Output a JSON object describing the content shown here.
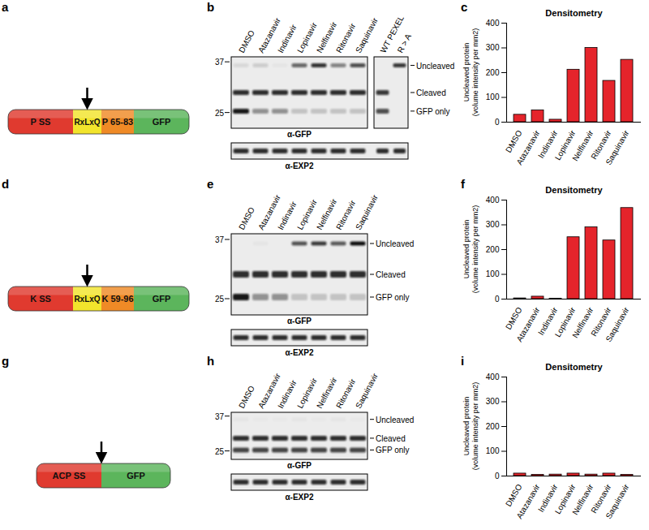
{
  "rows": [
    {
      "letters": [
        "a",
        "b",
        "c"
      ],
      "diagram": {
        "segments": [
          {
            "label": "P SS",
            "color": "#e03a2f"
          },
          {
            "label": "RxLxQ",
            "color": "#f2e42c"
          },
          {
            "label": "P 65-83",
            "color": "#ef8a26"
          },
          {
            "label": "GFP",
            "color": "#5cb55c"
          }
        ]
      },
      "blot": {
        "lanes": [
          "DMSO",
          "Atazanavir",
          "Indinavir",
          "Lopinavir",
          "Nelfinavir",
          "Ritonavir",
          "Saquinavir"
        ],
        "extra_lanes": [
          "WT PEXEL",
          "R > A"
        ],
        "markers": [
          37,
          25
        ],
        "bands": [
          "Uncleaved",
          "Cleaved",
          "GFP only"
        ],
        "antibodies": [
          "α-GFP",
          "α-EXP2"
        ]
      }
    },
    {
      "letters": [
        "d",
        "e",
        "f"
      ],
      "diagram": {
        "segments": [
          {
            "label": "K SS",
            "color": "#e03a2f"
          },
          {
            "label": "RxLxQ",
            "color": "#f2e42c"
          },
          {
            "label": "K 59-96",
            "color": "#ef8a26"
          },
          {
            "label": "GFP",
            "color": "#5cb55c"
          }
        ]
      },
      "blot": {
        "lanes": [
          "DMSO",
          "Atazanavir",
          "Indinavir",
          "Lopinavir",
          "Nelfinavir",
          "Ritonavir",
          "Saquinavir"
        ],
        "extra_lanes": [],
        "markers": [
          37,
          25
        ],
        "bands": [
          "Uncleaved",
          "Cleaved",
          "GFP only"
        ],
        "antibodies": [
          "α-GFP",
          "α-EXP2"
        ]
      }
    },
    {
      "letters": [
        "g",
        "h",
        "i"
      ],
      "diagram": {
        "segments": [
          {
            "label": "ACP SS",
            "color": "#e03a2f"
          },
          {
            "label": "GFP",
            "color": "#5cb55c"
          }
        ]
      },
      "blot": {
        "lanes": [
          "DMSO",
          "Atazanavir",
          "Indinavir",
          "Lopinavir",
          "Nelfinavir",
          "Ritonavir",
          "Saquinavir"
        ],
        "extra_lanes": [],
        "markers": [
          37,
          25
        ],
        "bands": [
          "Uncleaved",
          "Cleaved",
          "GFP only"
        ],
        "antibodies": [
          "α-GFP",
          "α-EXP2"
        ]
      }
    }
  ],
  "chart_data": [
    {
      "type": "bar",
      "title": "Densitometry",
      "ylabel": "Uncleaved protein\n(volume intensity per mm2)",
      "categories": [
        "DMSO",
        "Atazanavir",
        "Indinavir",
        "Lopinavir",
        "Nelfinavir",
        "Ritonavir",
        "Saquinavir"
      ],
      "values": [
        30,
        48,
        10,
        212,
        300,
        167,
        252
      ],
      "color": "#e5242b",
      "ylim": [
        0,
        400
      ],
      "yticks": [
        0,
        100,
        200,
        300,
        400
      ],
      "grid": false
    },
    {
      "type": "bar",
      "title": "Densitometry",
      "ylabel": "Uncleaved protein\n(volume intensity per mm2)",
      "categories": [
        "DMSO",
        "Atazanavir",
        "Indinavir",
        "Lopinavir",
        "Nelfinavir",
        "Ritonavir",
        "Saquinavir"
      ],
      "values": [
        3,
        10,
        2,
        250,
        290,
        237,
        368
      ],
      "color": "#e5242b",
      "ylim": [
        0,
        400
      ],
      "yticks": [
        0,
        100,
        200,
        300,
        400
      ],
      "grid": false
    },
    {
      "type": "bar",
      "title": "Densitometry",
      "ylabel": "Uncleaved protein\n(volume intensity per mm2)",
      "categories": [
        "DMSO",
        "Atazanavir",
        "Indinavir",
        "Lopinavir",
        "Nelfinavir",
        "Ritonavir",
        "Saquinavir"
      ],
      "values": [
        10,
        5,
        6,
        10,
        6,
        10,
        5
      ],
      "color": "#e5242b",
      "ylim": [
        0,
        400
      ],
      "yticks": [
        0,
        100,
        200,
        300,
        400
      ],
      "grid": false
    }
  ]
}
